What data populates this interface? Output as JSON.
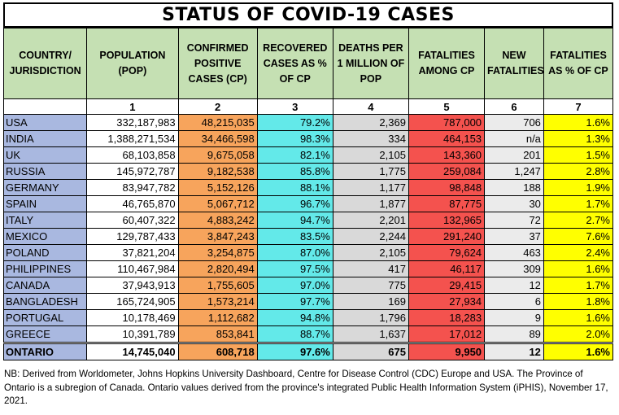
{
  "title": "STATUS OF COVID-19 CASES",
  "headers": [
    "COUNTRY/ JURISDICTION",
    "POPULATION (POP)",
    "CONFIRMED POSITIVE CASES (CP)",
    "RECOVERED CASES AS % OF CP",
    "DEATHS PER 1 MILLION OF POP",
    "FATALITIES AMONG CP",
    "NEW FATALITIES",
    "FATALITIES AS % OF CP"
  ],
  "column_numbers": [
    "1",
    "2",
    "3",
    "4",
    "5",
    "6",
    "7"
  ],
  "rows": [
    [
      "USA",
      "332,187,983",
      "48,215,035",
      "79.2%",
      "2,369",
      "787,000",
      "706",
      "1.6%"
    ],
    [
      "INDIA",
      "1,388,271,534",
      "34,466,598",
      "98.3%",
      "334",
      "464,153",
      "n/a",
      "1.3%"
    ],
    [
      "UK",
      "68,103,858",
      "9,675,058",
      "82.1%",
      "2,105",
      "143,360",
      "201",
      "1.5%"
    ],
    [
      "RUSSIA",
      "145,972,787",
      "9,182,538",
      "85.8%",
      "1,775",
      "259,084",
      "1,247",
      "2.8%"
    ],
    [
      "GERMANY",
      "83,947,782",
      "5,152,126",
      "88.1%",
      "1,177",
      "98,848",
      "188",
      "1.9%"
    ],
    [
      "SPAIN",
      "46,765,870",
      "5,067,712",
      "96.7%",
      "1,877",
      "87,775",
      "30",
      "1.7%"
    ],
    [
      "ITALY",
      "60,407,322",
      "4,883,242",
      "94.7%",
      "2,201",
      "132,965",
      "72",
      "2.7%"
    ],
    [
      "MEXICO",
      "129,787,433",
      "3,847,243",
      "83.5%",
      "2,244",
      "291,240",
      "37",
      "7.6%"
    ],
    [
      "POLAND",
      "37,821,204",
      "3,254,875",
      "87.0%",
      "2,105",
      "79,624",
      "463",
      "2.4%"
    ],
    [
      "PHILIPPINES",
      "110,467,984",
      "2,820,494",
      "97.5%",
      "417",
      "46,117",
      "309",
      "1.6%"
    ],
    [
      "CANADA",
      "37,943,913",
      "1,755,605",
      "97.0%",
      "775",
      "29,415",
      "12",
      "1.7%"
    ],
    [
      "BANGLADESH",
      "165,724,905",
      "1,573,214",
      "97.7%",
      "169",
      "27,934",
      "6",
      "1.8%"
    ],
    [
      "PORTUGAL",
      "10,178,469",
      "1,112,682",
      "94.8%",
      "1,796",
      "18,283",
      "9",
      "1.6%"
    ],
    [
      "GREECE",
      "10,391,789",
      "853,841",
      "88.7%",
      "1,637",
      "17,012",
      "89",
      "2.0%"
    ]
  ],
  "total_row": [
    "ONTARIO",
    "14,745,040",
    "608,718",
    "97.6%",
    "675",
    "9,950",
    "12",
    "1.6%"
  ],
  "footnote": "NB: Derived from Worldometer, Johns Hopkins University Dashboard, Centre for Disease Control (CDC) Europe and USA. The Province of Ontario is a subregion of Canada. Ontario values derived from the province's integrated Public Health Information System (iPHIS), November 17, 2021.",
  "colors": {
    "header": "#c5e0b3",
    "country": "#a9b8e0",
    "confirmed": "#f7a45c",
    "recovered": "#63e9e9",
    "deaths_per_million": "#d9d9d9",
    "fatalities": "#f4524e",
    "new_fatalities": "#ebebeb",
    "fatality_pct": "#ffff00"
  }
}
